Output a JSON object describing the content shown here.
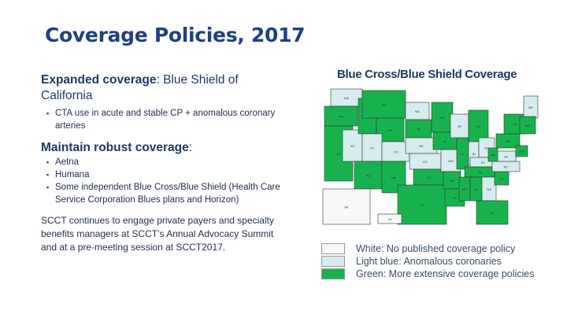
{
  "title": "Coverage Policies, 2017",
  "bullets": [
    {
      "bold": "Expanded coverage",
      "rest": ": Blue Shield of California",
      "subs": [
        "CTA use in acute and stable CP + anomalous coronary arteries"
      ]
    },
    {
      "bold": "Maintain robust coverage",
      "rest": ":",
      "subs": [
        "Aetna",
        "Humana",
        "Some independent Blue Cross/Blue Shield (Health Care Service Corporation Blues plans and Horizon)"
      ]
    }
  ],
  "closing": "SCCT continues to engage private payers and specialty benefits managers at SCCT’s Annual Advocacy Summit and at a pre-meeting session at SCCT2017.",
  "map": {
    "title": "Blue Cross/Blue Shield Coverage",
    "colors": {
      "white": "#f7f9f9",
      "light_blue": "#d7ecef",
      "green": "#17b24e"
    },
    "states": [
      {
        "abbr": "WA",
        "coverage": "light_blue"
      },
      {
        "abbr": "OR",
        "coverage": "green"
      },
      {
        "abbr": "CA",
        "coverage": "green"
      },
      {
        "abbr": "NV",
        "coverage": "light_blue"
      },
      {
        "abbr": "ID",
        "coverage": "green"
      },
      {
        "abbr": "MT",
        "coverage": "green"
      },
      {
        "abbr": "WY",
        "coverage": "green"
      },
      {
        "abbr": "UT",
        "coverage": "light_blue"
      },
      {
        "abbr": "CO",
        "coverage": "light_blue"
      },
      {
        "abbr": "AZ",
        "coverage": "green"
      },
      {
        "abbr": "NM",
        "coverage": "green"
      },
      {
        "abbr": "ND",
        "coverage": "light_blue"
      },
      {
        "abbr": "SD",
        "coverage": "green"
      },
      {
        "abbr": "NE",
        "coverage": "light_blue"
      },
      {
        "abbr": "KS",
        "coverage": "light_blue"
      },
      {
        "abbr": "OK",
        "coverage": "green"
      },
      {
        "abbr": "TX",
        "coverage": "green"
      },
      {
        "abbr": "MN",
        "coverage": "green"
      },
      {
        "abbr": "IA",
        "coverage": "green"
      },
      {
        "abbr": "MO",
        "coverage": "light_blue"
      },
      {
        "abbr": "AR",
        "coverage": "green"
      },
      {
        "abbr": "LA",
        "coverage": "green"
      },
      {
        "abbr": "WI",
        "coverage": "light_blue"
      },
      {
        "abbr": "IL",
        "coverage": "green"
      },
      {
        "abbr": "MI",
        "coverage": "green"
      },
      {
        "abbr": "IN",
        "coverage": "light_blue"
      },
      {
        "abbr": "OH",
        "coverage": "light_blue"
      },
      {
        "abbr": "KY",
        "coverage": "light_blue"
      },
      {
        "abbr": "TN",
        "coverage": "green"
      },
      {
        "abbr": "MS",
        "coverage": "green"
      },
      {
        "abbr": "AL",
        "coverage": "green"
      },
      {
        "abbr": "GA",
        "coverage": "light_blue"
      },
      {
        "abbr": "FL",
        "coverage": "green"
      },
      {
        "abbr": "SC",
        "coverage": "green"
      },
      {
        "abbr": "NC",
        "coverage": "light_blue"
      },
      {
        "abbr": "VA",
        "coverage": "light_blue"
      },
      {
        "abbr": "WV",
        "coverage": "green"
      },
      {
        "abbr": "PA",
        "coverage": "green"
      },
      {
        "abbr": "NY",
        "coverage": "green"
      },
      {
        "abbr": "ME",
        "coverage": "light_blue"
      },
      {
        "abbr": "NH",
        "coverage": "green"
      },
      {
        "abbr": "MD",
        "coverage": "green"
      },
      {
        "abbr": "AK",
        "coverage": "white"
      },
      {
        "abbr": "HI",
        "coverage": "white"
      }
    ]
  },
  "legend": [
    {
      "key": "white",
      "label": "White: No published coverage policy"
    },
    {
      "key": "light_blue",
      "label": "Light blue: Anomalous coronaries"
    },
    {
      "key": "green",
      "label": "Green: More extensive coverage policies"
    }
  ]
}
